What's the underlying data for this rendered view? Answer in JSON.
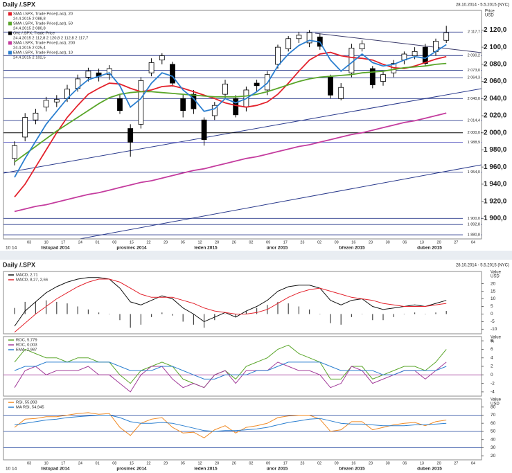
{
  "chart_data": [
    {
      "type": "candlestick",
      "title": "Daily /.SPX",
      "subtitle": "28.10.2014 - 5.5.2015 (NYC)",
      "y_label": "Price",
      "y_unit": "USD",
      "open": [
        1970,
        1995,
        2015,
        2030,
        2036,
        2040,
        2052,
        2065,
        2070,
        2068,
        2040,
        2005,
        2010,
        2070,
        2085,
        2080,
        2040,
        2045,
        2015,
        2020,
        2045,
        2040,
        2030,
        2058,
        2050,
        2080,
        2098,
        2110,
        2105,
        2112,
        2065,
        2040,
        2070,
        2098,
        2075,
        2060,
        2070,
        2085,
        2090,
        2100,
        2095,
        2108
      ],
      "high": [
        1990,
        2023,
        2028,
        2042,
        2044,
        2056,
        2068,
        2076,
        2075,
        2079,
        2045,
        2010,
        2065,
        2087,
        2093,
        2083,
        2045,
        2050,
        2018,
        2036,
        2062,
        2044,
        2054,
        2062,
        2072,
        2103,
        2113,
        2118,
        2120,
        2116,
        2068,
        2058,
        2104,
        2108,
        2078,
        2072,
        2085,
        2095,
        2100,
        2104,
        2110,
        2125
      ],
      "low": [
        1962,
        1990,
        2010,
        2025,
        2030,
        2036,
        2048,
        2060,
        2060,
        2062,
        2022,
        1972,
        2005,
        2066,
        2080,
        2054,
        2018,
        2022,
        1985,
        2015,
        2040,
        2018,
        2025,
        2048,
        2044,
        2075,
        2095,
        2105,
        2100,
        2097,
        2040,
        2038,
        2065,
        2095,
        2052,
        2055,
        2065,
        2080,
        2086,
        2078,
        2090,
        2105
      ],
      "close": [
        1985,
        2018,
        2023,
        2038,
        2039,
        2051,
        2063,
        2072,
        2066,
        2075,
        2026,
        1989,
        2061,
        2082,
        2090,
        2058,
        2026,
        2028,
        1992,
        2032,
        2057,
        2021,
        2050,
        2055,
        2068,
        2100,
        2110,
        2114,
        2117,
        2101,
        2044,
        2053,
        2099,
        2104,
        2056,
        2068,
        2081,
        2092,
        2095,
        2081,
        2107,
        2117
      ],
      "ohlc_name": "Ohl; /.SPX, Trade Price",
      "ohlc_value": "24.4.2015 2 112,8 2 120,8 2 112,8 2 117,7",
      "up_color": "#ffffff",
      "down_color": "#000000",
      "series": [
        {
          "name": "SMA /.SPX, Trade Price(Last), 20",
          "legend_value": "24.4.2015 2 088,8",
          "color": "#e3212b",
          "values": [
            1925,
            1940,
            1960,
            1980,
            2000,
            2018,
            2032,
            2045,
            2052,
            2058,
            2057,
            2052,
            2048,
            2050,
            2054,
            2055,
            2052,
            2048,
            2044,
            2040,
            2035,
            2032,
            2030,
            2032,
            2036,
            2045,
            2058,
            2072,
            2085,
            2092,
            2094,
            2090,
            2088,
            2087,
            2085,
            2080,
            2076,
            2075,
            2078,
            2082,
            2086,
            2089
          ]
        },
        {
          "name": "SMA /.SPX, Trade Price(Last), 50",
          "legend_value": "24.4.2015 2 080,8",
          "color": "#5aa62a",
          "values": [
            1966,
            1975,
            1984,
            1993,
            2002,
            2010,
            2018,
            2026,
            2034,
            2041,
            2045,
            2047,
            2048,
            2048,
            2047,
            2046,
            2045,
            2044,
            2043,
            2042,
            2042,
            2042,
            2043,
            2045,
            2048,
            2052,
            2056,
            2060,
            2063,
            2065,
            2066,
            2067,
            2068,
            2070,
            2071,
            2072,
            2074,
            2076,
            2077,
            2078,
            2080,
            2081
          ]
        },
        {
          "name": "SMA /.SPX, Trade Price(Last), 200",
          "legend_value": "24.4.2015 2 025,4",
          "color": "#c43c9e",
          "values": [
            1908,
            1911,
            1914,
            1916,
            1919,
            1922,
            1925,
            1928,
            1930,
            1933,
            1936,
            1939,
            1942,
            1944,
            1947,
            1950,
            1953,
            1956,
            1958,
            1961,
            1964,
            1967,
            1970,
            1972,
            1975,
            1978,
            1981,
            1984,
            1986,
            1989,
            1992,
            1995,
            1998,
            2000,
            2003,
            2006,
            2009,
            2012,
            2014,
            2017,
            2020,
            2023
          ]
        },
        {
          "name": "EMA /.SPX, Trade Price(Last), 10",
          "legend_value": "24.4.2015 2 102,5",
          "color": "#2b7fd0",
          "values": [
            1948,
            1970,
            1990,
            2010,
            2025,
            2040,
            2052,
            2062,
            2066,
            2070,
            2055,
            2030,
            2040,
            2058,
            2070,
            2066,
            2050,
            2040,
            2025,
            2028,
            2040,
            2035,
            2040,
            2048,
            2058,
            2078,
            2092,
            2102,
            2108,
            2106,
            2085,
            2072,
            2082,
            2092,
            2082,
            2078,
            2080,
            2085,
            2089,
            2087,
            2095,
            2103
          ]
        }
      ],
      "levels": [
        {
          "value": 2117.7,
          "label": "2 117,7",
          "color": "#2a3a8c"
        },
        {
          "value": 2090.2,
          "label": "2 090,2",
          "color": "#2a3a8c"
        },
        {
          "value": 2073.0,
          "label": "2 073,0",
          "color": "#2a3a8c"
        },
        {
          "value": 2064.3,
          "label": "2 064,3",
          "color": "#2a3a8c"
        },
        {
          "value": 2040.0,
          "label": "2 040,0",
          "color": "#2a3a8c"
        },
        {
          "value": 2014.4,
          "label": "2 014,4",
          "color": "#2a3a8c"
        },
        {
          "value": 2000.0,
          "label": "2 000,0",
          "color": "#000000"
        },
        {
          "value": 1988.9,
          "label": "1 988,9",
          "color": "#6a6ac8"
        },
        {
          "value": 1954.0,
          "label": "1 954,0",
          "color": "#2a3a8c"
        },
        {
          "value": 1900.0,
          "label": "1 900,0",
          "color": "#2a3a8c"
        },
        {
          "value": 1892.8,
          "label": "1 892,8",
          "color": "#2a3a8c"
        },
        {
          "value": 1880.8,
          "label": "1 880,8",
          "color": "#2a3a8c"
        }
      ],
      "ylim": [
        1876,
        2143
      ],
      "yticks": [
        {
          "value": 2120,
          "label": "2 120,0"
        },
        {
          "value": 2100,
          "label": "2 100,0"
        },
        {
          "value": 2080,
          "label": "2 080,0"
        },
        {
          "value": 2060,
          "label": "2 060,0"
        },
        {
          "value": 2040,
          "label": "2 040,0"
        },
        {
          "value": 2020,
          "label": "2 020,0"
        },
        {
          "value": 2000,
          "label": "2 000,0"
        },
        {
          "value": 1980,
          "label": "1 980,0"
        },
        {
          "value": 1960,
          "label": "1 960,0"
        },
        {
          "value": 1940,
          "label": "1 940,0"
        },
        {
          "value": 1920,
          "label": "1 920,0"
        },
        {
          "value": 1900,
          "label": "1 900,0"
        }
      ],
      "x_labels": [
        "10 14",
        "03",
        "10",
        "17",
        "24",
        "01",
        "08",
        "15",
        "22",
        "29",
        "05",
        "12",
        "20",
        "26",
        "02",
        "09",
        "17",
        "23",
        "02",
        "09",
        "16",
        "23",
        "30",
        "06",
        "13",
        "20",
        "27",
        "04"
      ],
      "month_labels": [
        "listopad 2014",
        "prosinec 2014",
        "leden 2015",
        "únor 2015",
        "březen 2015",
        "duben 2015"
      ]
    },
    {
      "type": "macd",
      "title": "Daily /.SPX",
      "subtitle": "28.10.2014 - 5.5.2015 (NYC)",
      "y_label": "Value",
      "y_unit": "USD",
      "series": [
        {
          "name": "MACD, 2,71",
          "color": "#111111",
          "values": [
            -8,
            2,
            8,
            14,
            18,
            21,
            23,
            24,
            24,
            23,
            17,
            8,
            6,
            9,
            12,
            10,
            4,
            0,
            -5,
            -2,
            1,
            -2,
            2,
            5,
            9,
            15,
            18,
            19,
            19,
            17,
            9,
            6,
            9,
            10,
            5,
            3,
            4,
            5,
            6,
            5,
            7,
            9
          ]
        },
        {
          "name": "MACD, 8,27, 2,66",
          "color": "#e3212b",
          "values": [
            -12,
            -6,
            0,
            5,
            10,
            14,
            18,
            21,
            23,
            23,
            21,
            17,
            13,
            11,
            11,
            11,
            9,
            7,
            4,
            2,
            1,
            0,
            0,
            1,
            3,
            7,
            11,
            14,
            16,
            17,
            15,
            13,
            11,
            10,
            9,
            7,
            6,
            5,
            5,
            5,
            6,
            7
          ]
        }
      ],
      "histogram": {
        "color": "#444444",
        "values": [
          4,
          8,
          8,
          9,
          8,
          7,
          5,
          3,
          1,
          0,
          -4,
          -9,
          -7,
          -2,
          1,
          -1,
          -5,
          -7,
          -9,
          -4,
          0,
          -2,
          2,
          4,
          6,
          8,
          7,
          5,
          3,
          0,
          -6,
          -7,
          -2,
          0,
          -4,
          -4,
          -2,
          0,
          1,
          0,
          1,
          2
        ]
      },
      "ylim": [
        -13,
        28
      ],
      "yticks": [
        20,
        15,
        10,
        5,
        0,
        -5,
        -10
      ]
    },
    {
      "type": "line",
      "y_label": "Value",
      "y_unit": "%",
      "series": [
        {
          "name": "ROC, 5,779",
          "color": "#5aa62a",
          "values": [
            3,
            6,
            5,
            4,
            4,
            3,
            4,
            4,
            3,
            3,
            0,
            -2,
            1,
            2,
            3,
            2,
            -1,
            -2,
            -3,
            0,
            1,
            -1,
            2,
            3,
            4,
            6,
            7,
            5,
            4,
            3,
            -1,
            -1,
            2,
            2,
            -1,
            0,
            1,
            2,
            2,
            1,
            3,
            6
          ]
        },
        {
          "name": "ROC, 0,003",
          "color": "#a23c9a",
          "values": [
            -3,
            1,
            2,
            0,
            1,
            1,
            1,
            2,
            0,
            0,
            -2,
            -4,
            0,
            2,
            2,
            -1,
            -3,
            -2,
            -3,
            0,
            1,
            -2,
            1,
            1,
            1,
            3,
            2,
            1,
            1,
            0,
            -3,
            -2,
            2,
            1,
            -2,
            -1,
            0,
            1,
            1,
            -1,
            1,
            3
          ]
        },
        {
          "name": "EMA, 2,987",
          "color": "#2b7fd0",
          "values": [
            1,
            2,
            2,
            3,
            3,
            3,
            3,
            3,
            3,
            3,
            2,
            1,
            1,
            1,
            2,
            2,
            1,
            0,
            -1,
            -1,
            0,
            0,
            0,
            1,
            1,
            2,
            3,
            3,
            3,
            3,
            2,
            1,
            1,
            1,
            1,
            0,
            0,
            1,
            1,
            1,
            1,
            2
          ]
        }
      ],
      "levels": [
        0
      ],
      "level_color": "#a23c9a",
      "ylim": [
        -5,
        9
      ],
      "yticks": [
        8,
        6,
        4,
        2,
        0,
        -2,
        -4
      ]
    },
    {
      "type": "line",
      "y_label": "Value",
      "y_unit": "USD",
      "series": [
        {
          "name": "RSI, 55,893",
          "color": "#f08a24",
          "values": [
            55,
            65,
            66,
            68,
            68,
            70,
            72,
            73,
            71,
            72,
            55,
            45,
            60,
            65,
            67,
            55,
            48,
            49,
            42,
            52,
            57,
            48,
            55,
            57,
            60,
            67,
            69,
            70,
            70,
            65,
            50,
            52,
            62,
            62,
            52,
            55,
            58,
            60,
            61,
            57,
            62,
            64
          ]
        },
        {
          "name": "MA RSI, 54,945",
          "color": "#2b7fd0",
          "values": [
            58,
            60,
            62,
            64,
            65,
            67,
            68,
            69,
            70,
            70,
            67,
            62,
            60,
            60,
            61,
            60,
            57,
            54,
            51,
            50,
            51,
            51,
            52,
            53,
            55,
            58,
            61,
            63,
            65,
            66,
            63,
            60,
            59,
            59,
            58,
            57,
            57,
            57,
            58,
            58,
            59,
            60
          ]
        }
      ],
      "levels": [
        70,
        50,
        30
      ],
      "level_color": "#3a5aa8",
      "ylim": [
        15,
        90
      ],
      "yticks": [
        80,
        70,
        60,
        50,
        40,
        30,
        20
      ],
      "x_labels": [
        "10 14",
        "03",
        "10",
        "17",
        "24",
        "01",
        "08",
        "15",
        "22",
        "29",
        "05",
        "12",
        "20",
        "26",
        "02",
        "09",
        "17",
        "23",
        "02",
        "09",
        "16",
        "23",
        "30",
        "06",
        "13",
        "20",
        "27",
        "04"
      ],
      "month_labels": [
        "listopad 2014",
        "prosinec 2014",
        "leden 2015",
        "únor 2015",
        "březen 2015",
        "duben 2015"
      ]
    }
  ]
}
